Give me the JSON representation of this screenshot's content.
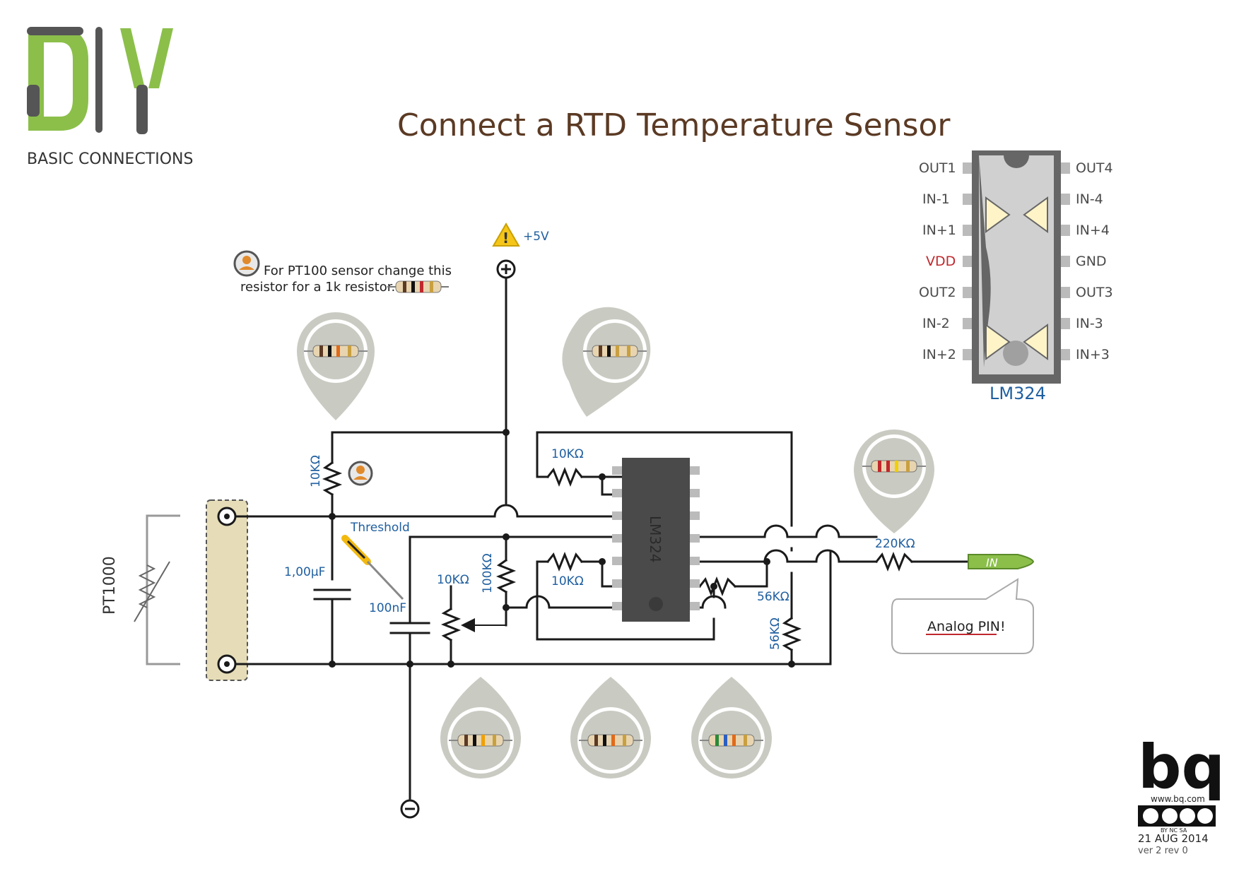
{
  "header": {
    "logo_text": "DIY",
    "logo_subtitle": "BASIC CONNECTIONS",
    "title": "Connect a RTD Temperature Sensor"
  },
  "colors": {
    "title": "#5b3a24",
    "accent_green": "#8bbf4a",
    "wire": "#1a1a1a",
    "label_blue": "#1f5fa0",
    "vdd_red": "#c0282d",
    "chip_body": "#4a4a4a",
    "sensor_block": "#e6ddb8",
    "callout_grey": "#c9cbc2"
  },
  "power": {
    "positive_label": "+5V",
    "positive_symbol": "⊕",
    "negative_symbol": "⊖"
  },
  "note": {
    "line1": "For PT100 sensor change this",
    "line2": "resistor for a 1k resistor."
  },
  "sensor": {
    "label": "PT1000"
  },
  "components": {
    "r_top": "10KΩ",
    "c_big": "1,00μF",
    "c_small": "100nF",
    "threshold": "Threshold",
    "pot": "10KΩ",
    "r_100k": "100KΩ",
    "r_fb_top": "10KΩ",
    "r_mid": "10KΩ",
    "r_mid2": "10KΩ",
    "r_56k_a": "56KΩ",
    "r_56k_b": "56KΩ",
    "r_out": "220KΩ",
    "chip_marking": "LM324"
  },
  "output": {
    "pin_label": "IN",
    "bubble_text": "Analog PIN!"
  },
  "pinout": {
    "chip_name": "LM324",
    "left": [
      "OUT1",
      "IN-1",
      "IN+1",
      "VDD",
      "OUT2",
      "IN-2",
      "IN+2"
    ],
    "right": [
      "OUT4",
      "IN-4",
      "IN+4",
      "GND",
      "OUT3",
      "IN-3",
      "IN+3"
    ]
  },
  "footer": {
    "brand": "bq",
    "url": "www.bq.com",
    "license": "BY NC SA",
    "date": "21 AUG 2014",
    "version": "ver 2 rev 0"
  }
}
